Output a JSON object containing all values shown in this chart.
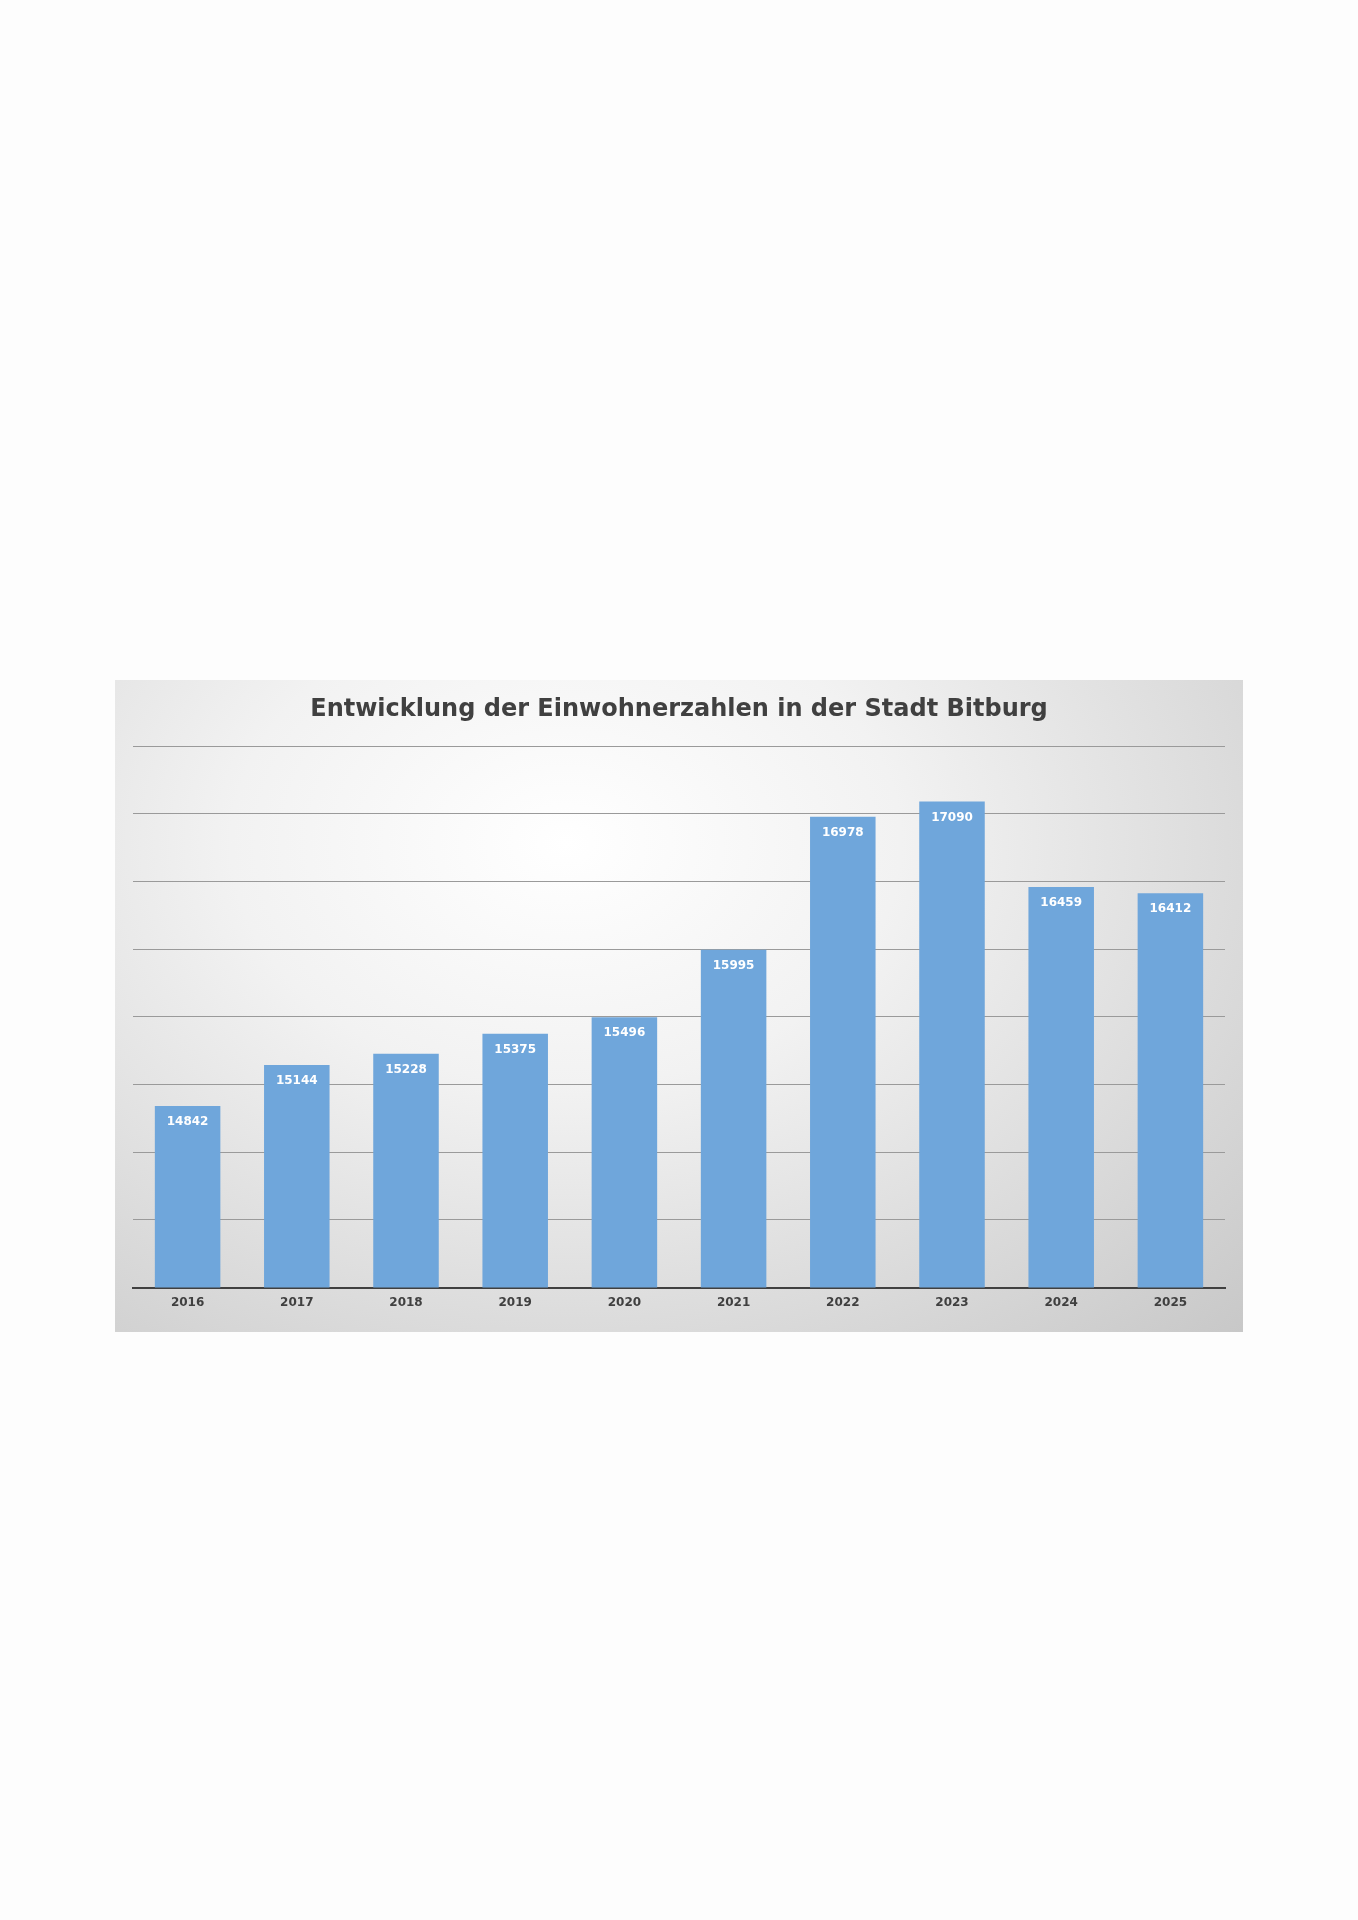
{
  "chart_data": {
    "type": "bar",
    "title": "Entwicklung der Einwohnerzahlen in der Stadt Bitburg",
    "categories": [
      "2016",
      "2017",
      "2018",
      "2019",
      "2020",
      "2021",
      "2022",
      "2023",
      "2024",
      "2025"
    ],
    "values": [
      14842,
      15144,
      15228,
      15375,
      15496,
      15995,
      16978,
      17090,
      16459,
      16412
    ],
    "color": "#6fa6db",
    "ylim": [
      13500,
      17500
    ],
    "yticks": [
      {
        "value": 13500,
        "label": null
      },
      {
        "value": 14000,
        "label": null
      },
      {
        "value": 14500,
        "label": null
      },
      {
        "value": 15000,
        "label": null
      },
      {
        "value": 15500,
        "label": null
      },
      {
        "value": 16000,
        "label": null
      },
      {
        "value": 16500,
        "label": null
      },
      {
        "value": 17000,
        "label": null
      },
      {
        "value": 17500,
        "label": null
      }
    ],
    "tick_labels": "x",
    "grid": "y",
    "data_labels": true,
    "legend": false
  }
}
